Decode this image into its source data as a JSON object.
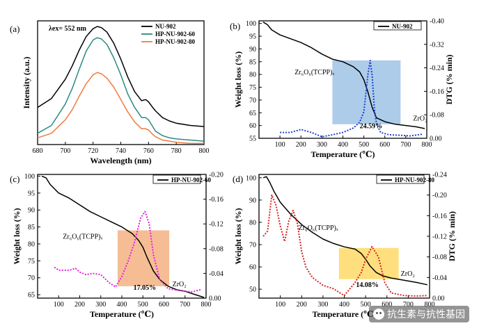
{
  "panels_meta": {
    "watermark": "抗生素与抗性基因"
  },
  "chart_data": [
    {
      "id": "a",
      "panel_label": "(a)",
      "type": "line",
      "xlabel": "Wavelength (nm)",
      "ylabel": "Intensity (a.u.)",
      "xlim": [
        680,
        800
      ],
      "xticks": [
        680,
        700,
        720,
        740,
        760,
        780,
        800
      ],
      "ylim": [
        0,
        1.1
      ],
      "annotation": "λex= 552 nm",
      "legend": "top-right",
      "series": [
        {
          "name": "NU-902",
          "color": "#000000",
          "x": [
            680,
            690,
            700,
            705,
            710,
            715,
            720,
            723,
            726,
            730,
            735,
            740,
            745,
            750,
            755,
            758,
            760,
            763,
            765,
            770,
            775,
            780,
            790,
            800
          ],
          "y": [
            0.33,
            0.41,
            0.58,
            0.7,
            0.84,
            0.96,
            1.03,
            1.05,
            1.04,
            1.0,
            0.9,
            0.76,
            0.6,
            0.47,
            0.39,
            0.4,
            0.38,
            0.33,
            0.3,
            0.24,
            0.21,
            0.19,
            0.17,
            0.16
          ]
        },
        {
          "name": "HP-NU-902-60",
          "color": "#2a8a80",
          "x": [
            680,
            690,
            700,
            705,
            710,
            715,
            720,
            723,
            726,
            730,
            735,
            740,
            745,
            750,
            755,
            758,
            760,
            763,
            765,
            770,
            775,
            780,
            790,
            800
          ],
          "y": [
            0.1,
            0.17,
            0.36,
            0.5,
            0.67,
            0.83,
            0.93,
            0.95,
            0.94,
            0.89,
            0.77,
            0.62,
            0.45,
            0.33,
            0.24,
            0.24,
            0.22,
            0.16,
            0.12,
            0.08,
            0.06,
            0.05,
            0.04,
            0.03
          ]
        },
        {
          "name": "HP-NU-902-80",
          "color": "#f07a40",
          "x": [
            680,
            690,
            700,
            705,
            710,
            715,
            720,
            723,
            726,
            730,
            735,
            740,
            745,
            750,
            755,
            758,
            760,
            763,
            765,
            770,
            775,
            780,
            790,
            800
          ],
          "y": [
            0.06,
            0.1,
            0.22,
            0.31,
            0.43,
            0.54,
            0.62,
            0.64,
            0.63,
            0.59,
            0.51,
            0.4,
            0.29,
            0.2,
            0.14,
            0.14,
            0.13,
            0.09,
            0.07,
            0.04,
            0.03,
            0.02,
            0.01,
            0.01
          ]
        }
      ]
    },
    {
      "id": "b",
      "panel_label": "(b)",
      "type": "line",
      "xlabel": "Temperature (℃)",
      "ylabel": "Weight loss (%)",
      "y2label": "DTG (% min)",
      "xlim": [
        0,
        800
      ],
      "xticks": [
        100,
        200,
        300,
        400,
        500,
        600,
        700,
        800
      ],
      "ylim": [
        55,
        101
      ],
      "yticks": [
        55,
        60,
        65,
        70,
        75,
        80,
        85,
        90,
        95,
        100
      ],
      "y2lim": [
        0.0,
        -0.4
      ],
      "y2ticks": [
        "0.00",
        "-0.08",
        "-0.16",
        "-0.24",
        "-0.32",
        "-0.40"
      ],
      "y2tick_values": [
        0.0,
        -0.08,
        -0.16,
        -0.24,
        -0.32,
        -0.4
      ],
      "legend": "top-right",
      "region": {
        "x0": 350,
        "x1": 675,
        "y0": 60.5,
        "y1": 85.5,
        "color": "#9dc3e6"
      },
      "percent_label": "24.59%",
      "percent_at": [
        480,
        59
      ],
      "annotation": "Zr₆O₆(TCPP)ₓ",
      "annotation_at": [
        170,
        80
      ],
      "residue_label": "ZrO₂",
      "residue_at": [
        735,
        62
      ],
      "series": [
        {
          "name": "NU-902",
          "color": "#000000",
          "axis": "left",
          "style": "solid",
          "x": [
            20,
            40,
            60,
            100,
            150,
            200,
            250,
            300,
            350,
            400,
            450,
            480,
            500,
            520,
            540,
            560,
            600,
            650,
            700,
            750,
            790
          ],
          "y": [
            100.5,
            99.5,
            97.5,
            95.5,
            94,
            92.5,
            90.5,
            88,
            86,
            85,
            83,
            81,
            78,
            73,
            67,
            63,
            61.5,
            60.5,
            60,
            59.5,
            58.8
          ]
        },
        {
          "name": "DTG",
          "color": "#1f3fd0",
          "axis": "right",
          "style": "dotted",
          "x": [
            100,
            150,
            200,
            250,
            300,
            350,
            400,
            450,
            480,
            500,
            520,
            530,
            540,
            550,
            560,
            580,
            620,
            680,
            720,
            780
          ],
          "y": [
            -0.02,
            -0.02,
            -0.03,
            -0.02,
            -0.005,
            -0.012,
            -0.02,
            -0.035,
            -0.055,
            -0.09,
            -0.22,
            -0.265,
            -0.21,
            -0.1,
            -0.05,
            -0.02,
            -0.012,
            -0.01,
            -0.008,
            -0.014
          ]
        }
      ]
    },
    {
      "id": "c",
      "panel_label": "(c)",
      "type": "line",
      "xlabel": "Temperature (℃)",
      "ylabel": "Weight loss (%)",
      "xlim": [
        0,
        800
      ],
      "xticks": [
        100,
        200,
        300,
        400,
        500,
        600,
        700,
        800
      ],
      "ylim": [
        64,
        100.5
      ],
      "yticks": [
        65,
        70,
        75,
        80,
        85,
        90,
        95,
        100
      ],
      "y2lim": [
        0.0,
        -0.2
      ],
      "y2ticks": [
        "0.00",
        "-0.04",
        "-0.08",
        "-0.12",
        "-0.16",
        "-0.20"
      ],
      "y2tick_values": [
        0.0,
        -0.04,
        -0.08,
        -0.12,
        -0.16,
        -0.2
      ],
      "legend": "top-right",
      "region": {
        "x0": 380,
        "x1": 625,
        "y0": 67.5,
        "y1": 84,
        "color": "#f4b183"
      },
      "percent_label": "17.05%",
      "percent_at": [
        455,
        66.5
      ],
      "annotation": "Zr₆O₆(TCPP)ₓ",
      "annotation_at": [
        120,
        81.5
      ],
      "residue_label": "ZrO₂",
      "residue_at": [
        640,
        67.5
      ],
      "series": [
        {
          "name": "HP-NU-902-60",
          "color": "#000000",
          "axis": "left",
          "style": "solid",
          "x": [
            20,
            40,
            60,
            100,
            150,
            200,
            250,
            300,
            350,
            400,
            450,
            480,
            500,
            520,
            550,
            580,
            620,
            660,
            700,
            750,
            790
          ],
          "y": [
            100,
            99.5,
            97.5,
            95,
            93.5,
            91.5,
            89.5,
            88,
            86.5,
            85,
            83,
            81,
            79,
            76,
            72,
            69.5,
            67.5,
            66.5,
            66,
            65,
            64.2
          ]
        },
        {
          "name": "DTG",
          "color": "#e020e0",
          "axis": "right",
          "style": "dotted",
          "x": [
            80,
            100,
            150,
            180,
            200,
            230,
            260,
            300,
            340,
            370,
            400,
            430,
            460,
            490,
            510,
            530,
            550,
            580,
            620,
            680,
            730,
            780
          ],
          "y": [
            -0.05,
            -0.045,
            -0.045,
            -0.048,
            -0.042,
            -0.038,
            -0.04,
            -0.038,
            -0.025,
            -0.018,
            -0.035,
            -0.06,
            -0.09,
            -0.13,
            -0.14,
            -0.12,
            -0.07,
            -0.03,
            -0.015,
            -0.012,
            -0.01,
            -0.014
          ]
        }
      ]
    },
    {
      "id": "d",
      "panel_label": "(d)",
      "type": "line",
      "xlabel": "Temperature (℃)",
      "ylabel": "Weight loss (%)",
      "y2label": "DTG (% min)",
      "xlim": [
        0,
        800
      ],
      "xticks": [
        100,
        200,
        300,
        400,
        500,
        600,
        700,
        800
      ],
      "ylim": [
        46,
        101.5
      ],
      "yticks": [
        50,
        60,
        70,
        80,
        90,
        100
      ],
      "y2lim": [
        0.0,
        -0.24
      ],
      "y2ticks": [
        "0.00",
        "-0.04",
        "-0.08",
        "-0.12",
        "-0.16",
        "-0.20",
        "-0.24"
      ],
      "y2tick_values": [
        0.0,
        -0.04,
        -0.08,
        -0.12,
        -0.16,
        -0.2,
        -0.24
      ],
      "legend": "top-right",
      "region": {
        "x0": 375,
        "x1": 655,
        "y0": 54.5,
        "y1": 68.5,
        "color": "#ffd966"
      },
      "percent_label": "14.08%",
      "percent_at": [
        455,
        51
      ],
      "annotation": "Zr₆O₆(TCPP)ₓ",
      "annotation_at": [
        185,
        76.5
      ],
      "residue_label": "ZrO₂",
      "residue_at": [
        665,
        56
      ],
      "series": [
        {
          "name": "HP-NU-902-80",
          "color": "#000000",
          "axis": "left",
          "style": "solid",
          "x": [
            20,
            35,
            50,
            70,
            100,
            150,
            200,
            250,
            300,
            350,
            400,
            450,
            480,
            500,
            520,
            550,
            580,
            620,
            680,
            740,
            790
          ],
          "y": [
            100,
            100.5,
            98,
            94,
            89,
            83.5,
            79,
            75.5,
            72.5,
            70.5,
            69,
            68,
            66,
            63.5,
            60.5,
            57.5,
            56,
            55,
            54,
            53,
            52
          ]
        },
        {
          "name": "DTG",
          "color": "#d62020",
          "axis": "right",
          "style": "dotted",
          "x": [
            20,
            40,
            60,
            80,
            100,
            120,
            140,
            160,
            180,
            200,
            220,
            250,
            300,
            350,
            380,
            400,
            420,
            450,
            480,
            500,
            530,
            560,
            590,
            620,
            680,
            740,
            790
          ],
          "y": [
            -0.12,
            -0.13,
            -0.2,
            -0.18,
            -0.14,
            -0.11,
            -0.15,
            -0.17,
            -0.145,
            -0.09,
            -0.06,
            -0.04,
            -0.025,
            -0.018,
            -0.01,
            -0.005,
            -0.015,
            -0.03,
            -0.05,
            -0.075,
            -0.1,
            -0.08,
            -0.03,
            -0.01,
            -0.005,
            -0.004,
            -0.005
          ]
        }
      ]
    }
  ]
}
